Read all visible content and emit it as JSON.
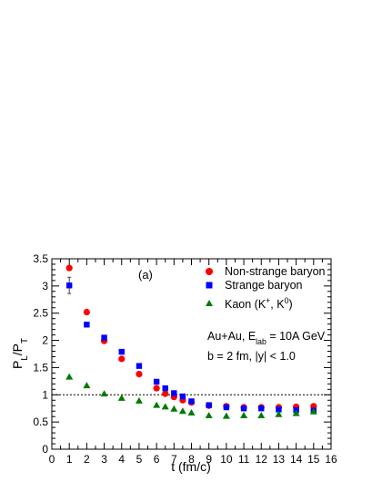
{
  "chart_data": {
    "type": "scatter",
    "panel_label": "(a)",
    "xlabel": "t (fm/c)",
    "ylabel": "P_L/P_T",
    "xlim": [
      0,
      16
    ],
    "ylim": [
      0,
      3.5
    ],
    "x_ticks": [
      0,
      1,
      2,
      3,
      4,
      5,
      6,
      7,
      8,
      9,
      10,
      11,
      12,
      13,
      14,
      15,
      16
    ],
    "y_ticks": [
      0,
      0.5,
      1,
      1.5,
      2,
      2.5,
      3,
      3.5
    ],
    "reference_line": 1,
    "legend_position": "top-right",
    "annotation_lines": [
      "Au+Au, E_lab = 10A GeV",
      "b = 2 fm, |y| < 1.0"
    ],
    "series": [
      {
        "name": "Non-strange baryon",
        "marker": "circle",
        "color": "#ff0000",
        "x": [
          1,
          2,
          3,
          4,
          5,
          6,
          6.5,
          7,
          7.5,
          8,
          9,
          10,
          11,
          12,
          13,
          14,
          15
        ],
        "y": [
          3.33,
          2.52,
          1.99,
          1.66,
          1.38,
          1.12,
          1.02,
          0.96,
          0.9,
          0.86,
          0.8,
          0.79,
          0.77,
          0.77,
          0.77,
          0.78,
          0.79
        ]
      },
      {
        "name": "Strange baryon",
        "marker": "square",
        "color": "#0000ff",
        "x": [
          1,
          2,
          3,
          4,
          5,
          6,
          6.5,
          7,
          7.5,
          8,
          9,
          10,
          11,
          12,
          13,
          14,
          15
        ],
        "y": [
          3.01,
          2.29,
          2.05,
          1.79,
          1.53,
          1.24,
          1.12,
          1.03,
          0.97,
          0.88,
          0.81,
          0.77,
          0.75,
          0.75,
          0.73,
          0.72,
          0.71
        ],
        "error": [
          0.15,
          0,
          0,
          0,
          0,
          0,
          0,
          0,
          0,
          0,
          0,
          0,
          0,
          0,
          0,
          0,
          0
        ]
      },
      {
        "name": "Kaon (K⁺, K⁰)",
        "marker": "triangle",
        "color": "#007a00",
        "x": [
          1,
          2,
          3,
          4,
          5,
          6,
          6.5,
          7,
          7.5,
          8,
          9,
          10,
          11,
          12,
          13,
          14,
          15
        ],
        "y": [
          1.33,
          1.17,
          1.02,
          0.94,
          0.89,
          0.81,
          0.78,
          0.74,
          0.7,
          0.67,
          0.62,
          0.61,
          0.62,
          0.62,
          0.64,
          0.66,
          0.69
        ]
      }
    ]
  }
}
